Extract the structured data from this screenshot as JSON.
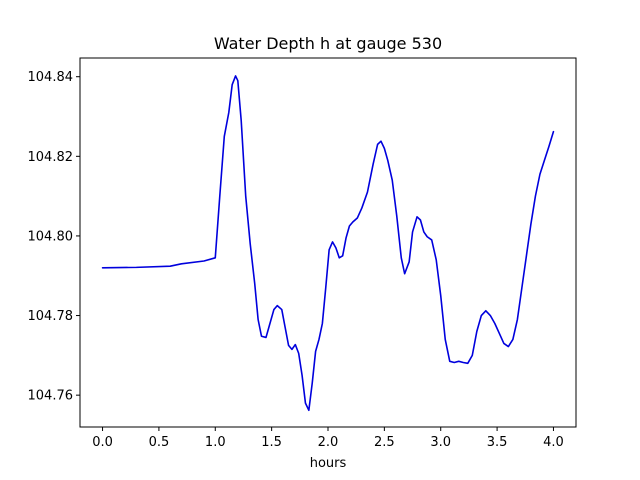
{
  "chart_data": {
    "type": "line",
    "title": "Water Depth h at gauge 530",
    "xlabel": "hours",
    "ylabel": "",
    "xlim": [
      -0.2,
      4.2
    ],
    "ylim": [
      104.752,
      104.8447
    ],
    "xticks": [
      0.0,
      0.5,
      1.0,
      1.5,
      2.0,
      2.5,
      3.0,
      3.5,
      4.0
    ],
    "xtick_labels": [
      "0.0",
      "0.5",
      "1.0",
      "1.5",
      "2.0",
      "2.5",
      "3.0",
      "3.5",
      "4.0"
    ],
    "yticks": [
      104.76,
      104.78,
      104.8,
      104.82,
      104.84
    ],
    "ytick_labels": [
      "104.76",
      "104.78",
      "104.80",
      "104.82",
      "104.84"
    ],
    "grid": false,
    "series": [
      {
        "color": "#0000dd",
        "x": [
          0.0,
          0.3,
          0.6,
          0.7,
          0.9,
          1.0,
          1.04,
          1.08,
          1.12,
          1.15,
          1.18,
          1.2,
          1.23,
          1.27,
          1.31,
          1.35,
          1.38,
          1.41,
          1.45,
          1.48,
          1.52,
          1.55,
          1.59,
          1.62,
          1.65,
          1.68,
          1.71,
          1.74,
          1.77,
          1.8,
          1.83,
          1.86,
          1.89,
          1.92,
          1.95,
          1.98,
          2.01,
          2.04,
          2.07,
          2.1,
          2.13,
          2.16,
          2.19,
          2.22,
          2.26,
          2.3,
          2.35,
          2.4,
          2.44,
          2.47,
          2.5,
          2.53,
          2.57,
          2.61,
          2.65,
          2.68,
          2.72,
          2.75,
          2.79,
          2.82,
          2.85,
          2.88,
          2.92,
          2.96,
          3.0,
          3.04,
          3.08,
          3.12,
          3.16,
          3.2,
          3.24,
          3.28,
          3.32,
          3.36,
          3.4,
          3.44,
          3.48,
          3.52,
          3.56,
          3.6,
          3.64,
          3.68,
          3.72,
          3.76,
          3.8,
          3.84,
          3.88,
          3.92,
          3.96,
          4.0
        ],
        "y": [
          104.792,
          104.7921,
          104.7924,
          104.793,
          104.7937,
          104.7945,
          104.81,
          104.825,
          104.831,
          104.838,
          104.8402,
          104.839,
          104.829,
          104.81,
          104.798,
          104.788,
          104.779,
          104.7748,
          104.7745,
          104.7775,
          104.7815,
          104.7825,
          104.7815,
          104.777,
          104.7725,
          104.7715,
          104.7727,
          104.7705,
          104.765,
          104.758,
          104.7562,
          104.763,
          104.771,
          104.774,
          104.778,
          104.787,
          104.7965,
          104.7985,
          104.797,
          104.7945,
          104.795,
          104.7995,
          104.8025,
          104.8035,
          104.8045,
          104.807,
          104.811,
          104.818,
          104.823,
          104.8238,
          104.822,
          104.819,
          104.814,
          104.805,
          104.7945,
          104.7905,
          104.7935,
          104.801,
          104.8048,
          104.804,
          104.801,
          104.7998,
          104.799,
          104.794,
          104.785,
          104.774,
          104.7685,
          104.7682,
          104.7685,
          104.7682,
          104.768,
          104.77,
          104.776,
          104.78,
          104.7812,
          104.78,
          104.778,
          104.7755,
          104.773,
          104.7722,
          104.774,
          104.779,
          104.787,
          104.795,
          104.803,
          104.81,
          104.8155,
          104.819,
          104.8225,
          104.8262
        ]
      }
    ]
  }
}
